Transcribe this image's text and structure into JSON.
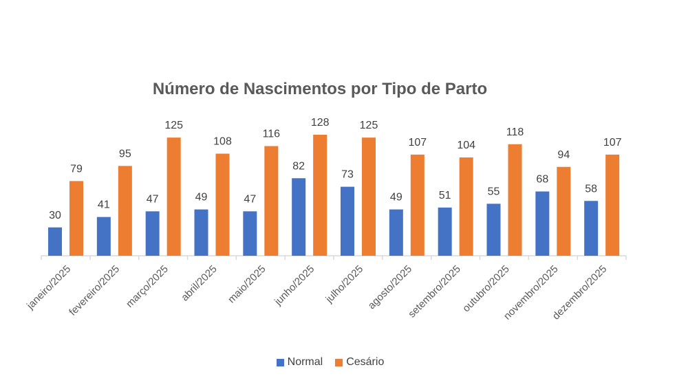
{
  "chart_data": {
    "type": "bar",
    "title": "Número de Nascimentos por Tipo de Parto",
    "xlabel": "",
    "ylabel": "",
    "ylim": [
      0,
      135
    ],
    "grid": false,
    "legend_position": "bottom",
    "categories": [
      "janeiro/2025",
      "fevereiro/2025",
      "março/2025",
      "abril/2025",
      "maio/2025",
      "junho/2025",
      "julho/2025",
      "agosto/2025",
      "setembro/2025",
      "outubro/2025",
      "novembro/2025",
      "dezembro/2025"
    ],
    "series": [
      {
        "name": "Normal",
        "color": "#4472C4",
        "values": [
          30,
          41,
          47,
          49,
          47,
          82,
          73,
          49,
          51,
          55,
          68,
          58
        ]
      },
      {
        "name": "Cesário",
        "color": "#ED7D31",
        "values": [
          79,
          95,
          125,
          108,
          116,
          128,
          125,
          107,
          104,
          118,
          94,
          107
        ]
      }
    ]
  }
}
